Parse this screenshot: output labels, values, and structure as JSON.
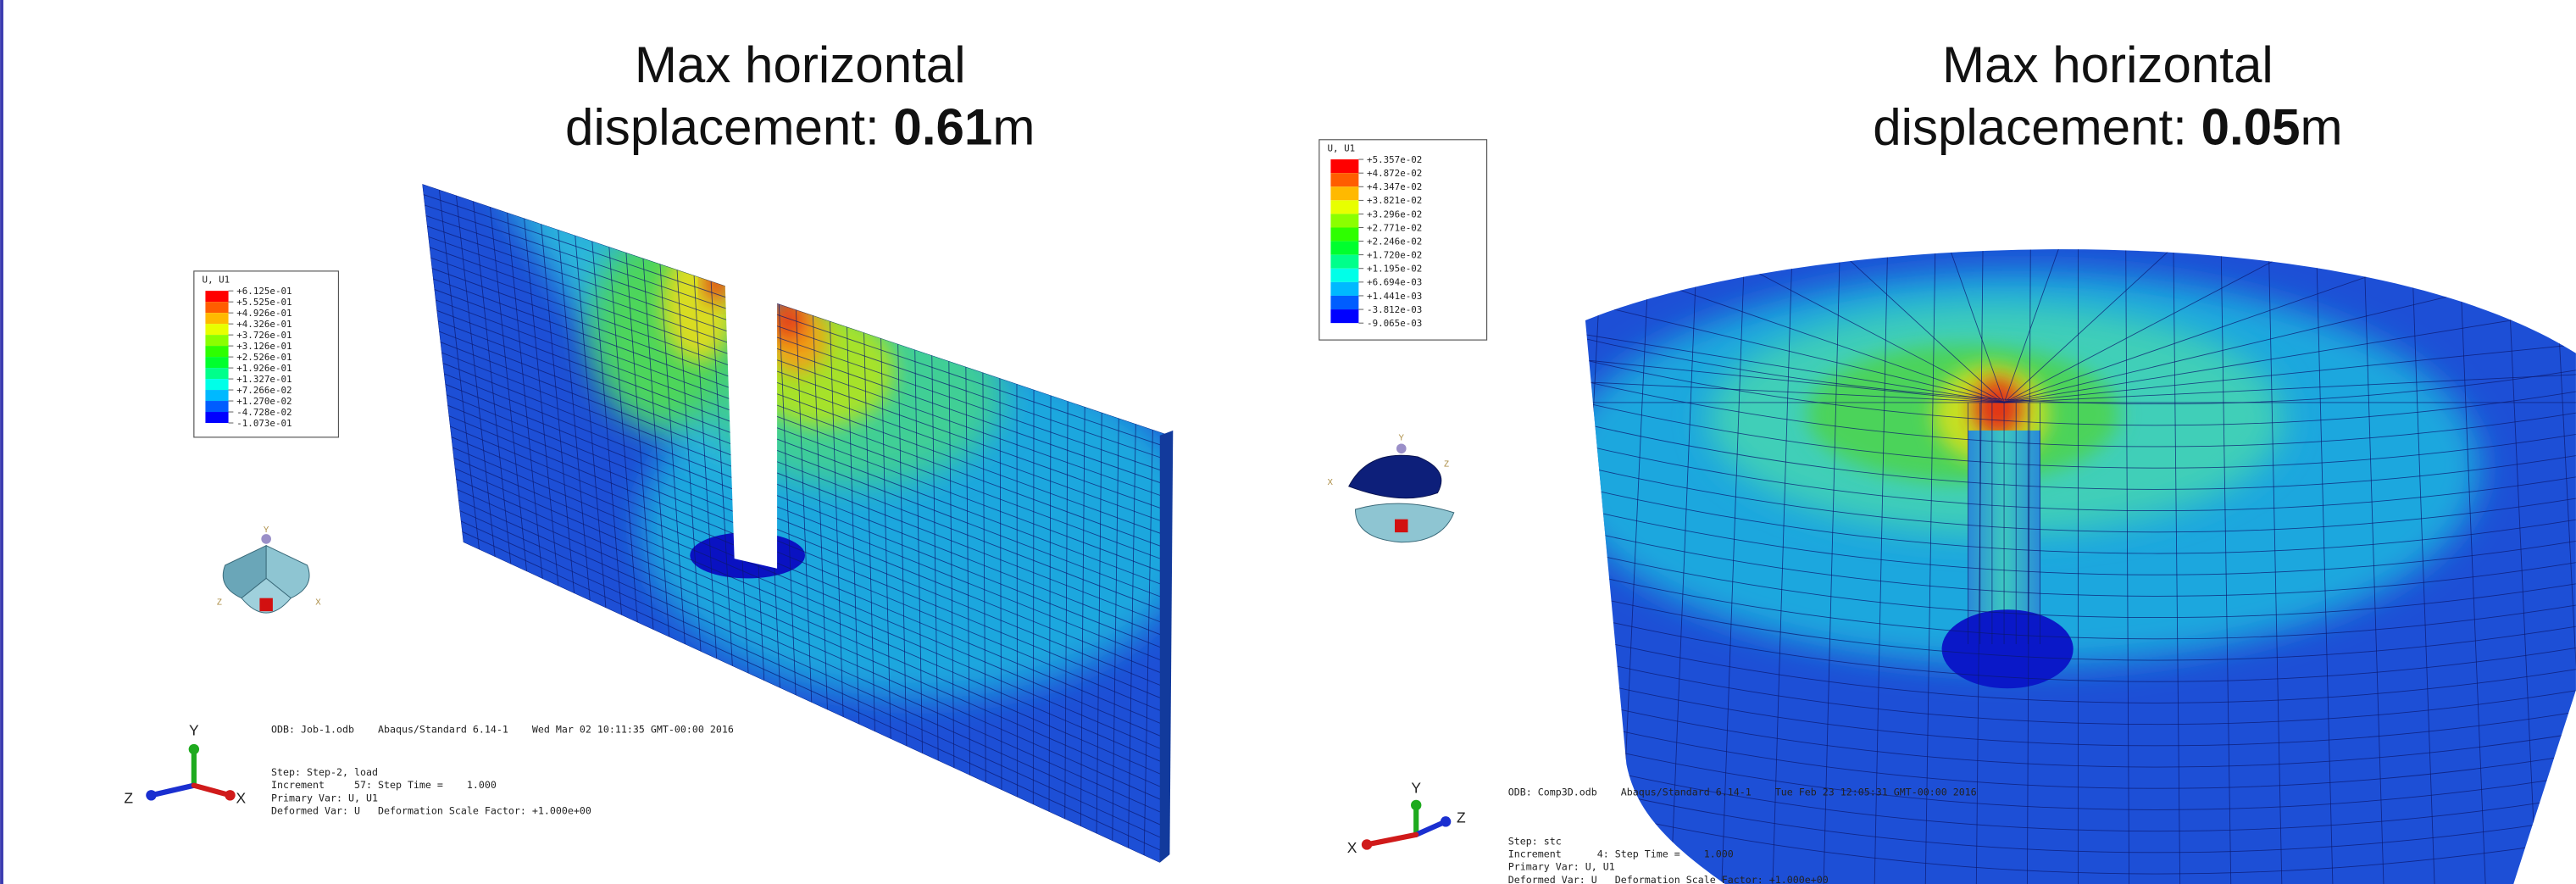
{
  "panels": [
    {
      "title": {
        "line1": "Max horizontal",
        "prefix": "displacement: ",
        "value": "0.61",
        "unit": "m"
      },
      "legend": {
        "title": "U, U1",
        "labels": [
          "+6.125e-01",
          "+5.525e-01",
          "+4.926e-01",
          "+4.326e-01",
          "+3.726e-01",
          "+3.126e-01",
          "+2.526e-01",
          "+1.926e-01",
          "+1.327e-01",
          "+7.266e-02",
          "+1.270e-02",
          "-4.728e-02",
          "-1.073e-01"
        ]
      },
      "viewcube": {
        "y": "Y",
        "z": "Z",
        "x": "X"
      },
      "triad": {
        "y": "Y",
        "z": "Z",
        "x": "X"
      },
      "info": {
        "odb": "ODB: Job-1.odb    Abaqus/Standard 6.14-1    Wed Mar 02 10:11:35 GMT-00:00 2016",
        "lines": [
          "Step: Step-2, load",
          "Increment     57: Step Time =    1.000",
          "Primary Var: U, U1",
          "Deformed Var: U   Deformation Scale Factor: +1.000e+00"
        ]
      }
    },
    {
      "title": {
        "line1": "Max horizontal",
        "prefix": "displacement: ",
        "value": "0.05",
        "unit": "m"
      },
      "legend": {
        "title": "U, U1",
        "labels": [
          "+5.357e-02",
          "+4.872e-02",
          "+4.347e-02",
          "+3.821e-02",
          "+3.296e-02",
          "+2.771e-02",
          "+2.246e-02",
          "+1.720e-02",
          "+1.195e-02",
          "+6.694e-03",
          "+1.441e-03",
          "-3.812e-03",
          "-9.065e-03"
        ]
      },
      "viewcube": {
        "y": "Y",
        "z": "Z",
        "x": "X"
      },
      "triad": {
        "y": "Y",
        "z": "Z",
        "x": "X"
      },
      "info": {
        "odb": "ODB: Comp3D.odb    Abaqus/Standard 6.14-1    Tue Feb 23 12:05:31 GMT-00:00 2016",
        "lines": [
          "Step: stc",
          "Increment      4: Step Time =    1.000",
          "Primary Var: U, U1",
          "Deformed Var: U   Deformation Scale Factor: +1.000e+00"
        ]
      }
    }
  ]
}
